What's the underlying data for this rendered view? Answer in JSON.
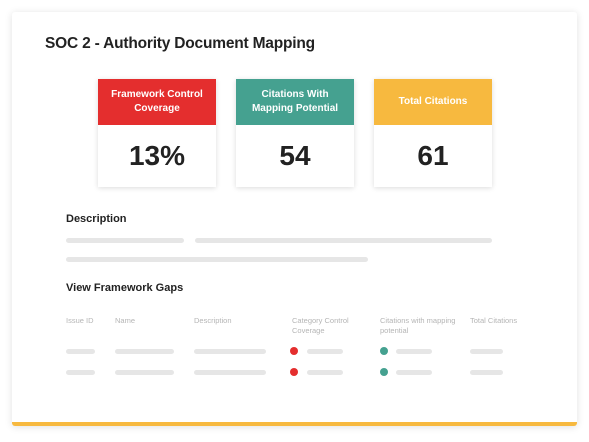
{
  "page": {
    "title": "SOC 2 - Authority Document Mapping"
  },
  "stats": [
    {
      "label": "Framework Control Coverage",
      "value": "13%",
      "color": "#e42e2e"
    },
    {
      "label": "Citations With Mapping Potential",
      "value": "54",
      "color": "#45a190"
    },
    {
      "label": "Total Citations",
      "value": "61",
      "color": "#f7b93f"
    }
  ],
  "description": {
    "heading": "Description"
  },
  "gaps": {
    "heading": "View Framework Gaps",
    "columns": [
      "Issue ID",
      "Name",
      "Description",
      "Category Control Coverage",
      "Citations with mapping potential",
      "Total Citations"
    ],
    "row_status_colors": {
      "coverage": "#e42e2e",
      "mapping": "#45a190"
    }
  },
  "accent": "#f7b93f"
}
